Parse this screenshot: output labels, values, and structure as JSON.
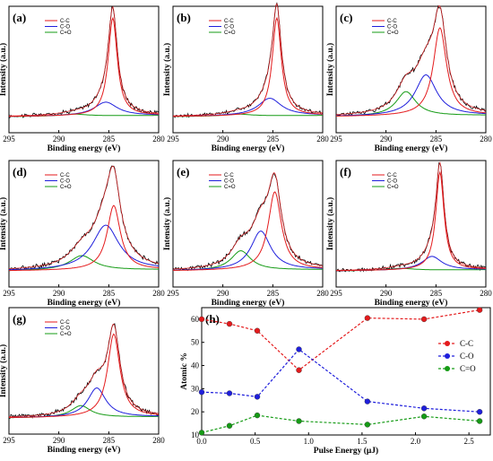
{
  "colors": {
    "cc": "#e41a1c",
    "co": "#1f1fdc",
    "coo": "#159b15",
    "raw": "#000000"
  },
  "xps_common": {
    "xlabel": "Binding energy (eV)",
    "ylabel": "Intensity (a.u.)",
    "xticks": [
      "295",
      "290",
      "285",
      "280"
    ],
    "xlim": [
      295,
      280
    ],
    "legend": [
      "C-C",
      "C-O",
      "C=O"
    ]
  },
  "chart_data": [
    {
      "type": "line",
      "panel": "(a)",
      "peaks": {
        "cc": {
          "center": 284.6,
          "amp": 1.0,
          "width": 0.55
        },
        "co": {
          "center": 285.3,
          "amp": 0.14,
          "width": 1.4
        },
        "coo": {
          "center": 288.5,
          "amp": 0.02,
          "width": 1.6
        }
      }
    },
    {
      "type": "line",
      "panel": "(b)",
      "peaks": {
        "cc": {
          "center": 284.6,
          "amp": 1.0,
          "width": 0.55
        },
        "co": {
          "center": 285.3,
          "amp": 0.18,
          "width": 1.4
        },
        "coo": {
          "center": 288.5,
          "amp": 0.02,
          "width": 1.6
        }
      }
    },
    {
      "type": "line",
      "panel": "(c)",
      "peaks": {
        "cc": {
          "center": 284.6,
          "amp": 0.9,
          "width": 0.8
        },
        "co": {
          "center": 286.0,
          "amp": 0.42,
          "width": 1.3
        },
        "coo": {
          "center": 288.0,
          "amp": 0.25,
          "width": 1.2
        }
      }
    },
    {
      "type": "line",
      "panel": "(d)",
      "peaks": {
        "cc": {
          "center": 284.5,
          "amp": 0.66,
          "width": 0.8
        },
        "co": {
          "center": 285.3,
          "amp": 0.46,
          "width": 1.6
        },
        "coo": {
          "center": 287.7,
          "amp": 0.15,
          "width": 1.5
        }
      }
    },
    {
      "type": "line",
      "panel": "(e)",
      "peaks": {
        "cc": {
          "center": 284.8,
          "amp": 0.8,
          "width": 0.8
        },
        "co": {
          "center": 286.2,
          "amp": 0.4,
          "width": 1.2
        },
        "coo": {
          "center": 288.2,
          "amp": 0.2,
          "width": 1.2
        }
      }
    },
    {
      "type": "line",
      "panel": "(f)",
      "peaks": {
        "cc": {
          "center": 284.6,
          "amp": 1.0,
          "width": 0.5
        },
        "co": {
          "center": 285.4,
          "amp": 0.14,
          "width": 1.2
        },
        "coo": {
          "center": 288.5,
          "amp": 0.02,
          "width": 1.6
        }
      }
    },
    {
      "type": "line",
      "panel": "(g)",
      "peaks": {
        "cc": {
          "center": 284.5,
          "amp": 0.85,
          "width": 0.75
        },
        "co": {
          "center": 286.2,
          "amp": 0.3,
          "width": 1.1
        },
        "coo": {
          "center": 287.8,
          "amp": 0.12,
          "width": 1.2
        }
      }
    },
    {
      "type": "line",
      "panel": "(h)",
      "xlabel": "Pulse Energy (μJ)",
      "ylabel": "Atomic %",
      "xlim": [
        0.0,
        2.7
      ],
      "ylim": [
        10,
        65
      ],
      "xticks": [
        "0.0",
        "0.5",
        "1.0",
        "1.5",
        "2.0",
        "2.5"
      ],
      "yticks": [
        "10",
        "20",
        "30",
        "40",
        "50",
        "60"
      ],
      "x": [
        0.0,
        0.26,
        0.52,
        0.91,
        1.55,
        2.08,
        2.6
      ],
      "series": [
        {
          "name": "C-C",
          "color_key": "cc",
          "values": [
            60,
            58,
            55,
            38,
            60.5,
            60,
            64
          ]
        },
        {
          "name": "C-O",
          "color_key": "co",
          "values": [
            28.5,
            28,
            26.5,
            47,
            24.5,
            21.5,
            20
          ]
        },
        {
          "name": "C=O",
          "color_key": "coo",
          "values": [
            11,
            14,
            18.5,
            16,
            14.5,
            18,
            16
          ]
        }
      ]
    }
  ]
}
